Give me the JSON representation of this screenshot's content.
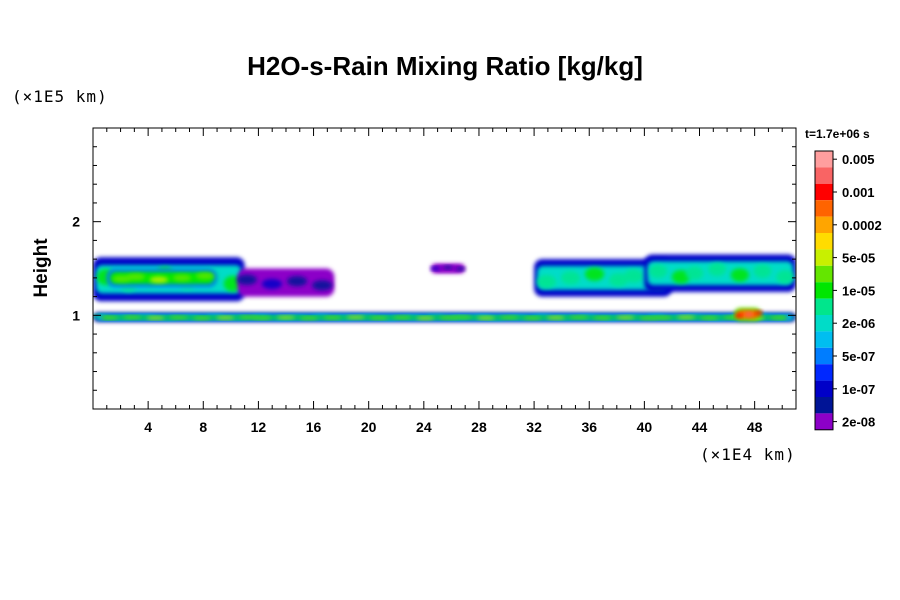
{
  "chart_data": {
    "type": "heatmap",
    "title": "H2O-s-Rain Mixing Ratio [kg/kg]",
    "xlabel": "",
    "ylabel": "Height",
    "x_unit_label": "(×1E4 km)",
    "y_unit_label": "(×1E5 km)",
    "time_label": "t=1.7e+06 s",
    "xlim": [
      0,
      51
    ],
    "ylim": [
      0,
      3
    ],
    "x_ticks": [
      4,
      8,
      12,
      16,
      20,
      24,
      28,
      32,
      36,
      40,
      44,
      48
    ],
    "x_tick_labels": [
      "4",
      "8",
      "12",
      "16",
      "20",
      "24",
      "28",
      "32",
      "36",
      "40",
      "44",
      "48"
    ],
    "y_ticks": [
      1,
      2
    ],
    "y_tick_labels": [
      "1",
      "2"
    ],
    "colorbar": {
      "labels": [
        "0.005",
        "0.001",
        "0.0002",
        "5e-05",
        "1e-05",
        "2e-06",
        "5e-07",
        "1e-07",
        "2e-08"
      ],
      "colors": [
        "#ff9e9e",
        "#f96464",
        "#ff0000",
        "#ff6400",
        "#ffa500",
        "#ffdc00",
        "#c8f000",
        "#64e600",
        "#00e600",
        "#00e68c",
        "#00dcc8",
        "#00bef0",
        "#007dff",
        "#0028ff",
        "#0000c8",
        "#001496",
        "#8c00c8"
      ]
    },
    "regions": [
      {
        "name": "lower-layer-background",
        "x": [
          0,
          51
        ],
        "y": [
          0.93,
          1.03
        ],
        "level": 6
      },
      {
        "name": "lower-layer-core",
        "x": [
          0.5,
          50.5
        ],
        "y": [
          0.95,
          1.0
        ],
        "level": 9
      },
      {
        "name": "lower-layer-peak",
        "x": [
          46.5,
          48.5
        ],
        "y": [
          0.94,
          1.08
        ],
        "level": 14
      },
      {
        "name": "upper-band-left",
        "x": [
          0,
          11
        ],
        "y": [
          1.15,
          1.62
        ],
        "level": 7
      },
      {
        "name": "upper-band-left-core",
        "x": [
          1,
          9
        ],
        "y": [
          1.3,
          1.5
        ],
        "level": 9
      },
      {
        "name": "upper-band-mid",
        "x": [
          10.5,
          17.5
        ],
        "y": [
          1.2,
          1.5
        ],
        "level": 1
      },
      {
        "name": "upper-band-center",
        "x": [
          24.5,
          27
        ],
        "y": [
          1.45,
          1.55
        ],
        "level": 1
      },
      {
        "name": "upper-band-right",
        "x": [
          32,
          42
        ],
        "y": [
          1.2,
          1.6
        ],
        "level": 7
      },
      {
        "name": "upper-band-far-right",
        "x": [
          40,
          51
        ],
        "y": [
          1.25,
          1.65
        ],
        "level": 7
      }
    ]
  }
}
